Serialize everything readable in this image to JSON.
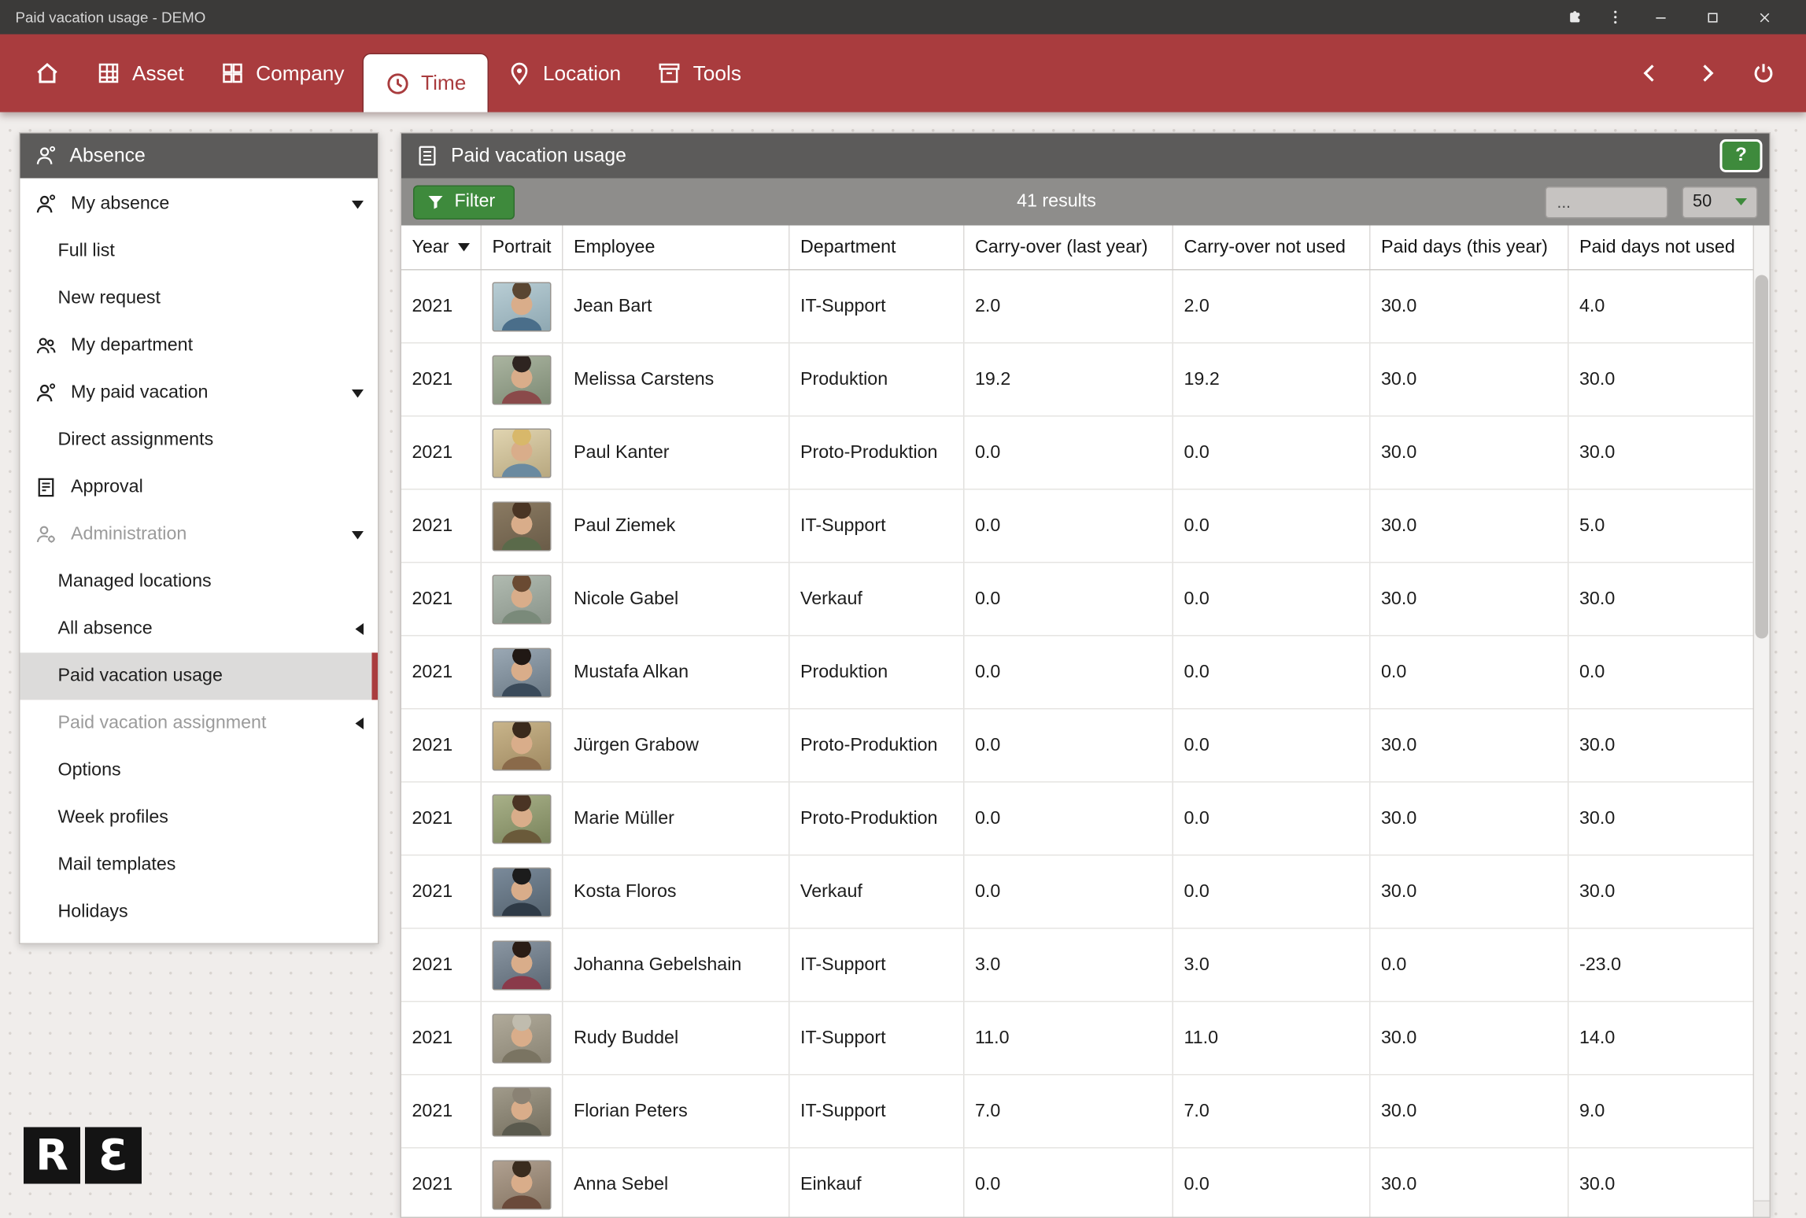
{
  "window": {
    "title": "Paid vacation usage - DEMO"
  },
  "nav": {
    "items": [
      {
        "icon": "home",
        "label": ""
      },
      {
        "icon": "asset-grid",
        "label": "Asset"
      },
      {
        "icon": "company-grid",
        "label": "Company"
      },
      {
        "icon": "clock",
        "label": "Time",
        "selected": true
      },
      {
        "icon": "pin",
        "label": "Location"
      },
      {
        "icon": "tools",
        "label": "Tools"
      }
    ]
  },
  "sidebar": {
    "title": "Absence",
    "items": [
      {
        "label": "My absence",
        "icon": "person-clock",
        "arrow": "down"
      },
      {
        "label": "Full list"
      },
      {
        "label": "New request"
      },
      {
        "label": "My department",
        "icon": "people"
      },
      {
        "label": "My paid vacation",
        "icon": "person-clock",
        "arrow": "down"
      },
      {
        "label": "Direct assignments"
      },
      {
        "label": "Approval",
        "icon": "doc-check"
      },
      {
        "label": "Administration",
        "icon": "person-gear",
        "arrow": "down",
        "muted": true
      },
      {
        "label": "Managed locations"
      },
      {
        "label": "All absence",
        "arrow": "left"
      },
      {
        "label": "Paid vacation usage",
        "selected": true
      },
      {
        "label": "Paid vacation assignment",
        "arrow": "left",
        "muted": true
      },
      {
        "label": "Options"
      },
      {
        "label": "Week profiles"
      },
      {
        "label": "Mail templates"
      },
      {
        "label": "Holidays"
      }
    ]
  },
  "main": {
    "title": "Paid vacation usage",
    "help_label": "?",
    "toolbar": {
      "filter_label": "Filter",
      "results": "41 results",
      "page_input": "...",
      "page_size": "50"
    },
    "table": {
      "columns": [
        "Year",
        "Portrait",
        "Employee",
        "Department",
        "Carry-over (last year)",
        "Carry-over not used",
        "Paid days (this year)",
        "Paid days not used"
      ],
      "rows": [
        {
          "year": "2021",
          "employee": "Jean Bart",
          "department": "IT-Support",
          "carry_over_last_year": "2.0",
          "carry_over_not_used": "2.0",
          "paid_days_this_year": "30.0",
          "paid_days_not_used": "4.0"
        },
        {
          "year": "2021",
          "employee": "Melissa Carstens",
          "department": "Produktion",
          "carry_over_last_year": "19.2",
          "carry_over_not_used": "19.2",
          "paid_days_this_year": "30.0",
          "paid_days_not_used": "30.0"
        },
        {
          "year": "2021",
          "employee": "Paul Kanter",
          "department": "Proto-Produktion",
          "carry_over_last_year": "0.0",
          "carry_over_not_used": "0.0",
          "paid_days_this_year": "30.0",
          "paid_days_not_used": "30.0"
        },
        {
          "year": "2021",
          "employee": "Paul Ziemek",
          "department": "IT-Support",
          "carry_over_last_year": "0.0",
          "carry_over_not_used": "0.0",
          "paid_days_this_year": "30.0",
          "paid_days_not_used": "5.0"
        },
        {
          "year": "2021",
          "employee": "Nicole Gabel",
          "department": "Verkauf",
          "carry_over_last_year": "0.0",
          "carry_over_not_used": "0.0",
          "paid_days_this_year": "30.0",
          "paid_days_not_used": "30.0"
        },
        {
          "year": "2021",
          "employee": "Mustafa Alkan",
          "department": "Produktion",
          "carry_over_last_year": "0.0",
          "carry_over_not_used": "0.0",
          "paid_days_this_year": "0.0",
          "paid_days_not_used": "0.0"
        },
        {
          "year": "2021",
          "employee": "Jürgen Grabow",
          "department": "Proto-Produktion",
          "carry_over_last_year": "0.0",
          "carry_over_not_used": "0.0",
          "paid_days_this_year": "30.0",
          "paid_days_not_used": "30.0"
        },
        {
          "year": "2021",
          "employee": "Marie Müller",
          "department": "Proto-Produktion",
          "carry_over_last_year": "0.0",
          "carry_over_not_used": "0.0",
          "paid_days_this_year": "30.0",
          "paid_days_not_used": "30.0"
        },
        {
          "year": "2021",
          "employee": "Kosta Floros",
          "department": "Verkauf",
          "carry_over_last_year": "0.0",
          "carry_over_not_used": "0.0",
          "paid_days_this_year": "30.0",
          "paid_days_not_used": "30.0"
        },
        {
          "year": "2021",
          "employee": "Johanna Gebelshain",
          "department": "IT-Support",
          "carry_over_last_year": "3.0",
          "carry_over_not_used": "3.0",
          "paid_days_this_year": "0.0",
          "paid_days_not_used": "-23.0"
        },
        {
          "year": "2021",
          "employee": "Rudy Buddel",
          "department": "IT-Support",
          "carry_over_last_year": "11.0",
          "carry_over_not_used": "11.0",
          "paid_days_this_year": "30.0",
          "paid_days_not_used": "14.0"
        },
        {
          "year": "2021",
          "employee": "Florian Peters",
          "department": "IT-Support",
          "carry_over_last_year": "7.0",
          "carry_over_not_used": "7.0",
          "paid_days_this_year": "30.0",
          "paid_days_not_used": "9.0"
        },
        {
          "year": "2021",
          "employee": "Anna Sebel",
          "department": "Einkauf",
          "carry_over_last_year": "0.0",
          "carry_over_not_used": "0.0",
          "paid_days_this_year": "30.0",
          "paid_days_not_used": "30.0"
        }
      ]
    }
  },
  "logo": {
    "letters": [
      "R",
      "Ɛ"
    ]
  }
}
